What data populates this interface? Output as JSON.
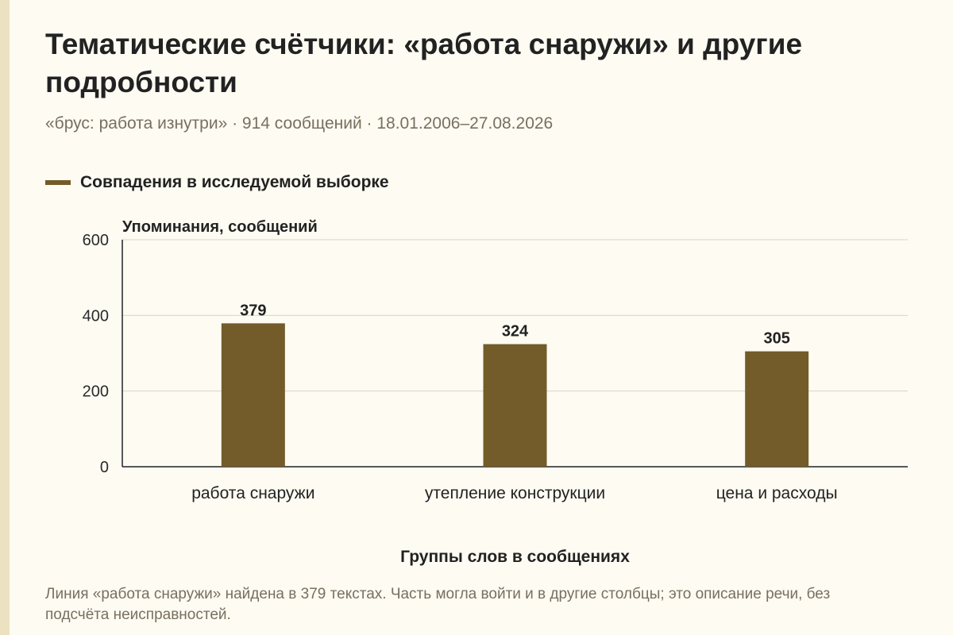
{
  "header": {
    "title": "Тематические счётчики: «работа снаружи» и другие подробности",
    "subtitle": "«брус: работа изнутри» · 914 сообщений · 18.01.2006–27.08.2026"
  },
  "legend": {
    "label": "Совпадения в исследуемой выборке"
  },
  "footnote": "Линия «работа снаружи» найдена в 379 текстах. Часть могла войти и в другие столбцы; это описание речи, без подсчёта неисправностей.",
  "colors": {
    "bar": "#735c2a",
    "background": "#fdfbf2",
    "grid": "#d9d4c6",
    "axis": "#222222"
  },
  "chart_data": {
    "type": "bar",
    "categories": [
      "работа снаружи",
      "утепление конструкции",
      "цена и расходы"
    ],
    "series": [
      {
        "name": "Совпадения в исследуемой выборке",
        "values": [
          379,
          324,
          305
        ]
      }
    ],
    "ylabel": "Упоминания, сообщений",
    "xlabel": "Группы слов в сообщениях",
    "ylim": [
      0,
      600
    ],
    "yticks": [
      0,
      200,
      400,
      600
    ],
    "grid": true,
    "legend_position": "top-left"
  }
}
